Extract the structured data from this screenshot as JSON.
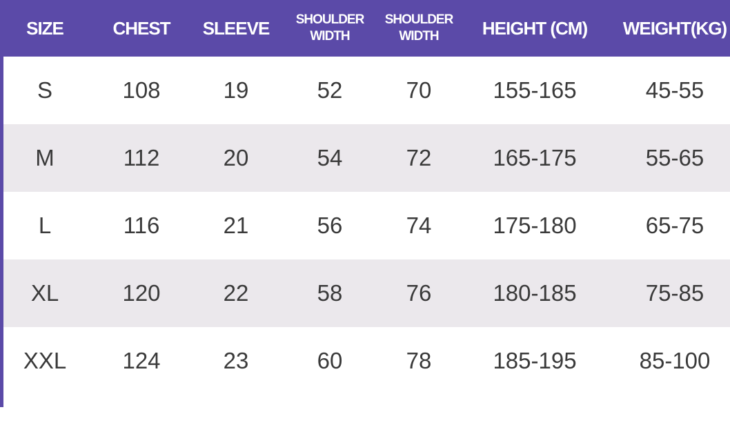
{
  "colors": {
    "header_bg": "#5b4aa8",
    "header_text": "#ffffff",
    "alt_row": "#ebe8ec",
    "text": "#3a3a3a"
  },
  "headers": [
    "SIZE",
    "CHEST",
    "SLEEVE",
    "SHOULDER WIDTH",
    "SHOULDER WIDTH",
    "HEIGHT (CM)",
    "WEIGHT(KG)"
  ],
  "rows": [
    [
      "S",
      "108",
      "19",
      "52",
      "70",
      "155-165",
      "45-55"
    ],
    [
      "M",
      "112",
      "20",
      "54",
      "72",
      "165-175",
      "55-65"
    ],
    [
      "L",
      "116",
      "21",
      "56",
      "74",
      "175-180",
      "65-75"
    ],
    [
      "XL",
      "120",
      "22",
      "58",
      "76",
      "180-185",
      "75-85"
    ],
    [
      "XXL",
      "124",
      "23",
      "60",
      "78",
      "185-195",
      "85-100"
    ]
  ]
}
